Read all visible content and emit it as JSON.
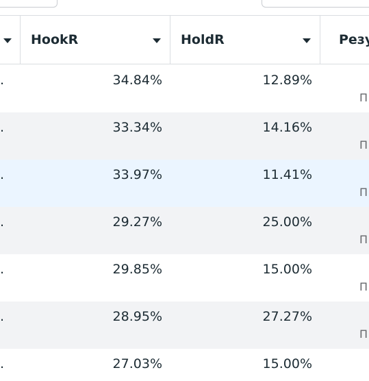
{
  "header": {
    "columns": [
      {
        "label": "HookR"
      },
      {
        "label": "HoldR"
      },
      {
        "label": "Резу"
      }
    ]
  },
  "rows": [
    {
      "lead": ".",
      "hook": "34.84%",
      "hold": "12.89%",
      "tail": "П"
    },
    {
      "lead": ".",
      "hook": "33.34%",
      "hold": "14.16%",
      "tail": "П"
    },
    {
      "lead": ".",
      "hook": "33.97%",
      "hold": "11.41%",
      "tail": "П"
    },
    {
      "lead": ".",
      "hook": "29.27%",
      "hold": "25.00%",
      "tail": "П"
    },
    {
      "lead": ".",
      "hook": "29.85%",
      "hold": "15.00%",
      "tail": "П"
    },
    {
      "lead": ".",
      "hook": "28.95%",
      "hold": "27.27%",
      "tail": "П"
    },
    {
      "lead": ".",
      "hook": "27.03%",
      "hold": "15.00%",
      "tail": "П"
    }
  ],
  "colors": {
    "row_alt": "#f2f3f5",
    "row_selected": "#ebf5ff",
    "border": "#dadde1",
    "text": "#1c2b33"
  },
  "icons": [
    "sort-caret-icon"
  ]
}
